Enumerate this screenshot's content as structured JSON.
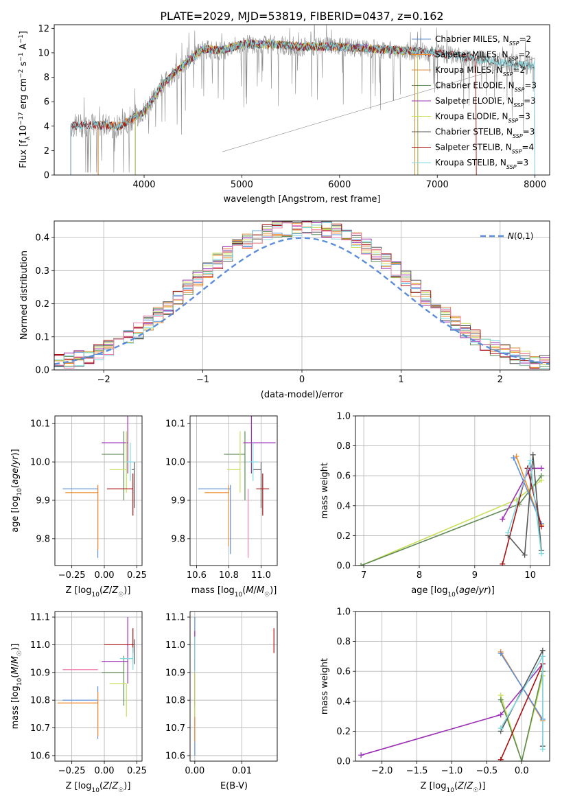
{
  "chart_data": [
    {
      "type": "line",
      "title": "PLATE=2029, MJD=53819, FIBERID=0437, z=0.162",
      "xlabel": "wavelength [Angstrom, rest frame]",
      "ylabel": "Flux [f_λ10^-17 erg cm^-2 s^-1 A^-1]",
      "xlim": [
        3080,
        8150
      ],
      "ylim": [
        0,
        12.3
      ],
      "xticks": [
        "4000",
        "5000",
        "6000",
        "7000",
        "8000"
      ],
      "yticks": [
        "0",
        "2",
        "4",
        "6",
        "8",
        "10",
        "12"
      ],
      "grid": false,
      "legend_position": "upper-right",
      "continuum": {
        "x": [
          3250,
          3500,
          3750,
          4000,
          4200,
          4400,
          4600,
          4800,
          5000,
          5300,
          5600,
          6000,
          6400,
          6800,
          7100,
          7500,
          7900
        ],
        "y": [
          4.0,
          4.1,
          4.0,
          5.2,
          7.5,
          9.0,
          10.3,
          10.2,
          10.7,
          10.7,
          10.5,
          10.5,
          10.3,
          10.1,
          9.9,
          9.4,
          9.0
        ]
      },
      "series": [
        {
          "name": "Chabrier MILES, N_SSP=2",
          "color": "#5b8dd9",
          "range": [
            3530,
            6770
          ]
        },
        {
          "name": "Salpeter MILES, N_SSP=2",
          "color": "#f08a24",
          "range": [
            3530,
            6770
          ]
        },
        {
          "name": "Kroupa MILES, N_SSP=2",
          "color": "#d98a3c",
          "range": [
            3530,
            6770
          ]
        },
        {
          "name": "Chabrier ELODIE, N_SSP=3",
          "color": "#5f8a55",
          "range": [
            3910,
            6800
          ]
        },
        {
          "name": "Salpeter ELODIE, N_SSP=3",
          "color": "#9b30b5",
          "range": [
            3910,
            6800
          ]
        },
        {
          "name": "Kroupa ELODIE, N_SSP=3",
          "color": "#c8e05a",
          "range": [
            3910,
            6800
          ]
        },
        {
          "name": "Chabrier STELIB, N_SSP=3",
          "color": "#555555",
          "range": [
            3250,
            8000
          ]
        },
        {
          "name": "Salpeter STELIB, N_SSP=4",
          "color": "#a81010",
          "range": [
            3250,
            7400
          ]
        },
        {
          "name": "Kroupa STELIB, N_SSP=3",
          "color": "#7fd8e0",
          "range": [
            3250,
            8000
          ]
        }
      ]
    },
    {
      "type": "step",
      "xlabel": "(data-model)/error",
      "ylabel": "Normed distribution",
      "xlim": [
        -2.5,
        2.5
      ],
      "ylim": [
        0,
        0.45
      ],
      "xticks": [
        "-2",
        "-1",
        "0",
        "1",
        "2"
      ],
      "yticks": [
        "0.0",
        "0.1",
        "0.2",
        "0.3",
        "0.4"
      ],
      "grid": true,
      "legend_position": "upper-right",
      "reference_label": "N(0,1)",
      "reference_color": "#5b8dd9",
      "bin_width": 0.1,
      "series_colors": [
        "#5b8dd9",
        "#f08a24",
        "#d98a3c",
        "#5f8a55",
        "#9b30b5",
        "#c8e05a",
        "#555555",
        "#a81010",
        "#7fd8e0",
        "#f080b0"
      ]
    },
    {
      "type": "errorbar",
      "xlabel": "Z [log10(Z/Z☉)]",
      "ylabel": "age [log10(age/yr)]",
      "xlim": [
        -0.38,
        0.29
      ],
      "ylim": [
        9.73,
        10.12
      ],
      "xticks": [
        "-0.25",
        "0.00",
        "0.25"
      ],
      "yticks": [
        "9.8",
        "9.9",
        "10.0",
        "10.1"
      ],
      "grid": true,
      "points": [
        {
          "x": -0.05,
          "y": 9.93,
          "xerr": [
            0.27,
            0
          ],
          "yerr": [
            0.18,
            0.01
          ],
          "color": "#5b8dd9"
        },
        {
          "x": -0.05,
          "y": 9.92,
          "xerr": [
            0.25,
            0
          ],
          "yerr": [
            0.15,
            0.02
          ],
          "color": "#f08a24"
        },
        {
          "x": 0.15,
          "y": 10.02,
          "xerr": [
            0.17,
            0
          ],
          "yerr": [
            0.12,
            0.06
          ],
          "color": "#5f8a55"
        },
        {
          "x": 0.18,
          "y": 10.05,
          "xerr": [
            0.2,
            0
          ],
          "yerr": [
            0.08,
            0.08
          ],
          "color": "#9b30b5"
        },
        {
          "x": 0.17,
          "y": 9.98,
          "xerr": [
            0.13,
            0
          ],
          "yerr": [
            0.06,
            0.1
          ],
          "color": "#c8e05a"
        },
        {
          "x": 0.23,
          "y": 9.98,
          "xerr": [
            0.02,
            0
          ],
          "yerr": [
            0.1,
            0.02
          ],
          "color": "#555555"
        },
        {
          "x": 0.22,
          "y": 9.93,
          "xerr": [
            0.2,
            0
          ],
          "yerr": [
            0.07,
            0.04
          ],
          "color": "#a81010"
        },
        {
          "x": 0.2,
          "y": 10.0,
          "xerr": [
            0.03,
            0.03
          ],
          "yerr": [
            0.05,
            0.05
          ],
          "color": "#7fd8e0"
        }
      ]
    },
    {
      "type": "errorbar",
      "xlabel": "mass [log10(M/M☉)]",
      "xlim": [
        10.56,
        11.1
      ],
      "ylim": [
        9.73,
        10.12
      ],
      "xticks": [
        "10.6",
        "10.8",
        "11.0"
      ],
      "yticks": [
        "9.8",
        "9.9",
        "10.0",
        "10.1"
      ],
      "grid": true,
      "points": [
        {
          "x": 10.81,
          "y": 9.93,
          "xerr": [
            0.2,
            0
          ],
          "yerr": [
            0.17,
            0.01
          ],
          "color": "#5b8dd9"
        },
        {
          "x": 10.8,
          "y": 9.92,
          "xerr": [
            0.15,
            0
          ],
          "yerr": [
            0.14,
            0.02
          ],
          "color": "#f08a24"
        },
        {
          "x": 10.9,
          "y": 10.02,
          "xerr": [
            0.13,
            0
          ],
          "yerr": [
            0.12,
            0.06
          ],
          "color": "#5f8a55"
        },
        {
          "x": 10.94,
          "y": 10.05,
          "xerr": [
            0.05,
            0.15
          ],
          "yerr": [
            0.08,
            0.08
          ],
          "color": "#9b30b5"
        },
        {
          "x": 10.87,
          "y": 9.98,
          "xerr": [
            0.08,
            0
          ],
          "yerr": [
            0.06,
            0.1
          ],
          "color": "#c8e05a"
        },
        {
          "x": 11.0,
          "y": 9.98,
          "xerr": [
            0.05,
            0
          ],
          "yerr": [
            0.1,
            0.02
          ],
          "color": "#555555"
        },
        {
          "x": 11.01,
          "y": 9.93,
          "xerr": [
            0.04,
            0.04
          ],
          "yerr": [
            0.07,
            0.04
          ],
          "color": "#a81010"
        },
        {
          "x": 10.92,
          "y": 9.93,
          "xerr": [
            0,
            0
          ],
          "yerr": [
            0.18,
            0
          ],
          "color": "#f080b0"
        },
        {
          "x": 10.95,
          "y": 10.0,
          "xerr": [
            0.03,
            0.03
          ],
          "yerr": [
            0.05,
            0.05
          ],
          "color": "#7fd8e0"
        }
      ]
    },
    {
      "type": "line",
      "xlabel": "age [log10(age/yr)]",
      "ylabel": "mass weight",
      "xlim": [
        6.85,
        10.35
      ],
      "ylim": [
        0,
        1
      ],
      "xticks": [
        "7",
        "8",
        "9",
        "10"
      ],
      "yticks": [
        "0.0",
        "0.2",
        "0.4",
        "0.6",
        "0.8",
        "1.0"
      ],
      "grid": true,
      "series": [
        {
          "color": "#c8e05a",
          "x": [
            6.95,
            9.75,
            10.2
          ],
          "y": [
            0.0,
            0.44,
            0.57
          ]
        },
        {
          "color": "#5f8a55",
          "x": [
            6.95,
            9.8,
            10.2
          ],
          "y": [
            0.0,
            0.41,
            0.6
          ]
        },
        {
          "color": "#f08a24",
          "x": [
            9.75,
            10.2
          ],
          "y": [
            0.73,
            0.27
          ]
        },
        {
          "color": "#5b8dd9",
          "x": [
            9.7,
            10.2
          ],
          "y": [
            0.72,
            0.28
          ]
        },
        {
          "color": "#9b30b5",
          "x": [
            9.5,
            10.0,
            10.2
          ],
          "y": [
            0.31,
            0.65,
            0.65
          ]
        },
        {
          "color": "#a81010",
          "x": [
            9.5,
            9.95,
            10.2
          ],
          "y": [
            0.01,
            0.65,
            0.26
          ]
        },
        {
          "color": "#555555",
          "x": [
            9.6,
            9.9,
            10.05,
            10.2
          ],
          "y": [
            0.2,
            0.07,
            0.74,
            0.1
          ]
        },
        {
          "color": "#7fd8e0",
          "x": [
            9.6,
            10.0,
            10.2
          ],
          "y": [
            0.22,
            0.7,
            0.08
          ]
        }
      ]
    },
    {
      "type": "errorbar",
      "xlabel": "Z [log10(Z/Z☉)]",
      "ylabel": "mass [log10(M/M☉)]",
      "xlim": [
        -0.38,
        0.29
      ],
      "ylim": [
        10.58,
        11.12
      ],
      "xticks": [
        "-0.25",
        "0.00",
        "0.25"
      ],
      "yticks": [
        "10.6",
        "10.7",
        "10.8",
        "10.9",
        "11.0",
        "11.1"
      ],
      "grid": true,
      "points": [
        {
          "x": -0.05,
          "y": 10.8,
          "xerr": [
            0.27,
            0
          ],
          "yerr": [
            0.14,
            0.05
          ],
          "color": "#5b8dd9"
        },
        {
          "x": -0.05,
          "y": 10.79,
          "xerr": [
            0.31,
            0
          ],
          "yerr": [
            0.12,
            0.04
          ],
          "color": "#f08a24"
        },
        {
          "x": 0.15,
          "y": 10.9,
          "xerr": [
            0.17,
            0
          ],
          "yerr": [
            0.12,
            0.06
          ],
          "color": "#5f8a55"
        },
        {
          "x": 0.18,
          "y": 10.94,
          "xerr": [
            0.2,
            0
          ],
          "yerr": [
            0.08,
            0.16
          ],
          "color": "#9b30b5"
        },
        {
          "x": 0.17,
          "y": 10.86,
          "xerr": [
            0.13,
            0
          ],
          "yerr": [
            0.12,
            0
          ],
          "color": "#c8e05a"
        },
        {
          "x": 0.23,
          "y": 11.0,
          "xerr": [
            0.02,
            0
          ],
          "yerr": [
            0.07,
            0.02
          ],
          "color": "#555555"
        },
        {
          "x": 0.22,
          "y": 11.0,
          "xerr": [
            0.22,
            0
          ],
          "yerr": [
            0.03,
            0.06
          ],
          "color": "#a81010"
        },
        {
          "x": -0.05,
          "y": 10.91,
          "xerr": [
            0.27,
            0
          ],
          "yerr": [
            0,
            0
          ],
          "color": "#f080b0"
        },
        {
          "x": 0.22,
          "y": 10.95,
          "xerr": [
            0.1,
            0
          ],
          "yerr": [
            0.04,
            0.04
          ],
          "color": "#7fd8e0"
        }
      ]
    },
    {
      "type": "errorbar",
      "xlabel": "E(B-V)",
      "xlim": [
        -0.001,
        0.0175
      ],
      "ylim": [
        10.58,
        11.12
      ],
      "xticks": [
        "0.00",
        "0.01"
      ],
      "yticks": [
        "10.6",
        "10.7",
        "10.8",
        "10.9",
        "11.0",
        "11.1"
      ],
      "grid": true,
      "points": [
        {
          "x": 0.0,
          "y": 10.85,
          "yerr": [
            0.25,
            0.25
          ],
          "color": "#5b8dd9"
        },
        {
          "x": 0.0,
          "y": 10.8,
          "yerr": [
            0.15,
            0.15
          ],
          "color": "#f08a24"
        },
        {
          "x": 0.0,
          "y": 10.9,
          "yerr": [
            0.12,
            0.15
          ],
          "color": "#9b30b5"
        },
        {
          "x": 0.0,
          "y": 10.86,
          "yerr": [
            0.12,
            0.05
          ],
          "color": "#c8e05a"
        },
        {
          "x": 0.0168,
          "y": 11.01,
          "yerr": [
            0.04,
            0.05
          ],
          "color": "#a81010"
        },
        {
          "x": 0.0,
          "y": 10.95,
          "yerr": [
            0.05,
            0.08
          ],
          "color": "#7fd8e0"
        }
      ]
    },
    {
      "type": "line",
      "xlabel": "Z [log10(Z/Z☉)]",
      "ylabel": "mass weight",
      "xlim": [
        -2.38,
        0.4
      ],
      "ylim": [
        0,
        1
      ],
      "xticks": [
        "-2.0",
        "-1.5",
        "-1.0",
        "-0.5",
        "0.0"
      ],
      "yticks": [
        "0.0",
        "0.2",
        "0.4",
        "0.6",
        "0.8",
        "1.0"
      ],
      "grid": true,
      "series": [
        {
          "color": "#9b30b5",
          "x": [
            -2.3,
            -0.3,
            0.3
          ],
          "y": [
            0.04,
            0.31,
            0.65
          ]
        },
        {
          "color": "#f08a24",
          "x": [
            -0.3,
            0.3
          ],
          "y": [
            0.73,
            0.27
          ]
        },
        {
          "color": "#5b8dd9",
          "x": [
            -0.3,
            0.3
          ],
          "y": [
            0.72,
            0.28
          ]
        },
        {
          "color": "#c8e05a",
          "x": [
            -0.3,
            0.0,
            0.3
          ],
          "y": [
            0.44,
            0.0,
            0.57
          ]
        },
        {
          "color": "#5f8a55",
          "x": [
            -0.3,
            0.0,
            0.3
          ],
          "y": [
            0.41,
            0.0,
            0.6
          ]
        },
        {
          "color": "#a81010",
          "x": [
            -0.3,
            0.3
          ],
          "y": [
            0.01,
            0.65
          ]
        },
        {
          "color": "#555555",
          "x": [
            -0.3,
            0.3,
            0.3
          ],
          "y": [
            0.2,
            0.74,
            0.1
          ]
        },
        {
          "color": "#7fd8e0",
          "x": [
            -0.3,
            0.3,
            0.3
          ],
          "y": [
            0.22,
            0.7,
            0.08
          ]
        }
      ]
    }
  ]
}
